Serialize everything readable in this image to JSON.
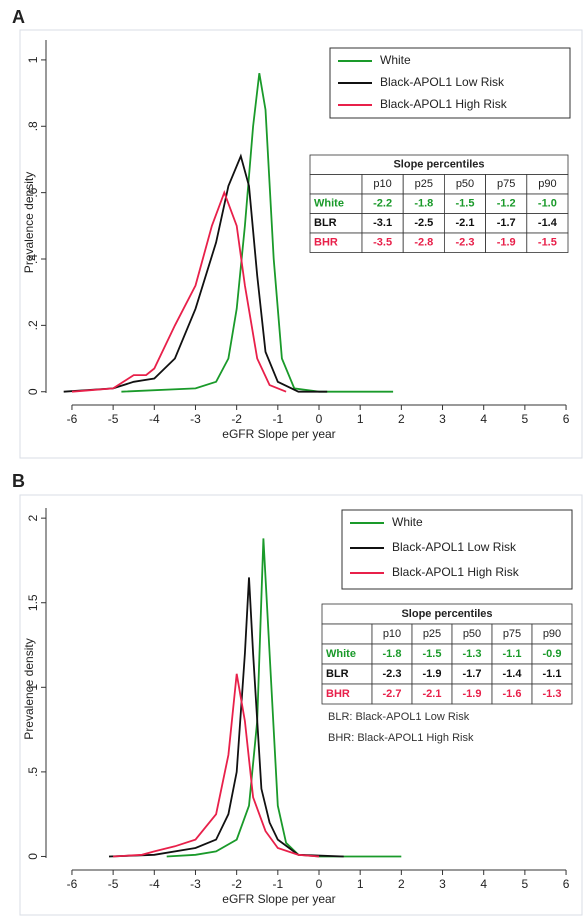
{
  "chart_data": [
    {
      "type": "line",
      "label": "A",
      "x_label": "eGFR Slope per year",
      "y_label": "Prevalence density",
      "xlim": [
        -6.3,
        6.3
      ],
      "xticks": [
        -6,
        -5,
        -4,
        -3,
        -2,
        -1,
        0,
        1,
        2,
        3,
        4,
        5,
        6
      ],
      "ylim": [
        -0.04,
        1.06
      ],
      "yticks": [
        0,
        {
          "value": 0.2,
          "label": ".2"
        },
        {
          "value": 0.4,
          "label": ".4"
        },
        {
          "value": 0.6,
          "label": ".6"
        },
        {
          "value": 0.8,
          "label": ".8"
        },
        1
      ],
      "legend": "upper right",
      "series": [
        {
          "name": "White",
          "color": "#1a9a2a",
          "x": [
            -4.8,
            -3,
            -2.5,
            -2.2,
            -2,
            -1.8,
            -1.6,
            -1.45,
            -1.3,
            -1.1,
            -0.9,
            -0.6,
            0,
            1.8
          ],
          "values": [
            0,
            0.01,
            0.03,
            0.1,
            0.25,
            0.5,
            0.8,
            0.96,
            0.85,
            0.4,
            0.1,
            0.01,
            0,
            0
          ]
        },
        {
          "name": "Black-APOL1 Low Risk",
          "color": "#111111",
          "x": [
            -6.2,
            -5,
            -4.5,
            -4,
            -3.5,
            -3,
            -2.5,
            -2.2,
            -1.9,
            -1.7,
            -1.5,
            -1.3,
            -1,
            -0.5,
            0.2
          ],
          "values": [
            0,
            0.01,
            0.03,
            0.04,
            0.1,
            0.25,
            0.45,
            0.62,
            0.71,
            0.62,
            0.35,
            0.12,
            0.03,
            0,
            0
          ]
        },
        {
          "name": "Black-APOL1 High Risk",
          "color": "#e8204a",
          "x": [
            -6,
            -5,
            -4.5,
            -4.2,
            -4,
            -3.5,
            -3,
            -2.6,
            -2.3,
            -2,
            -1.8,
            -1.5,
            -1.2,
            -0.8
          ],
          "values": [
            0,
            0.01,
            0.05,
            0.05,
            0.07,
            0.2,
            0.32,
            0.5,
            0.6,
            0.5,
            0.32,
            0.1,
            0.02,
            0
          ]
        }
      ],
      "table": {
        "title": "Slope percentiles",
        "columns": [
          "p10",
          "p25",
          "p50",
          "p75",
          "p90"
        ],
        "rows": [
          {
            "label": "White",
            "values": [
              "-2.2",
              "-1.8",
              "-1.5",
              "-1.2",
              "-1.0"
            ]
          },
          {
            "label": "BLR",
            "values": [
              "-3.1",
              "-2.5",
              "-2.1",
              "-1.7",
              "-1.4"
            ]
          },
          {
            "label": "BHR",
            "values": [
              "-3.5",
              "-2.8",
              "-2.3",
              "-1.9",
              "-1.5"
            ]
          }
        ]
      }
    },
    {
      "type": "line",
      "label": "B",
      "x_label": "eGFR Slope per year",
      "y_label": "Prevalence density",
      "xlim": [
        -6.3,
        6.3
      ],
      "xticks": [
        -6,
        -5,
        -4,
        -3,
        -2,
        -1,
        0,
        1,
        2,
        3,
        4,
        5,
        6
      ],
      "ylim": [
        -0.08,
        2.06
      ],
      "yticks": [
        0,
        {
          "value": 0.5,
          "label": ".5"
        },
        1,
        1.5,
        2
      ],
      "legend": "upper right",
      "series": [
        {
          "name": "White",
          "color": "#1a9a2a",
          "x": [
            -3.7,
            -3,
            -2.5,
            -2,
            -1.7,
            -1.5,
            -1.35,
            -1.2,
            -1,
            -0.8,
            -0.5,
            0,
            2
          ],
          "values": [
            0,
            0.01,
            0.03,
            0.1,
            0.3,
            0.8,
            1.88,
            1.2,
            0.3,
            0.08,
            0.01,
            0,
            0
          ]
        },
        {
          "name": "Black-APOL1 Low Risk",
          "color": "#111111",
          "x": [
            -5.1,
            -4,
            -3,
            -2.5,
            -2.2,
            -2,
            -1.8,
            -1.7,
            -1.6,
            -1.4,
            -1.2,
            -1,
            -0.5,
            0.6
          ],
          "values": [
            0,
            0.01,
            0.05,
            0.1,
            0.25,
            0.5,
            1.2,
            1.65,
            1.2,
            0.4,
            0.2,
            0.1,
            0.01,
            0
          ]
        },
        {
          "name": "Black-APOL1 High Risk",
          "color": "#e8204a",
          "x": [
            -5,
            -4.3,
            -4,
            -3.5,
            -3,
            -2.5,
            -2.2,
            -2,
            -1.8,
            -1.6,
            -1.3,
            -1,
            -0.5,
            0
          ],
          "values": [
            0,
            0.01,
            0.03,
            0.06,
            0.1,
            0.25,
            0.6,
            1.08,
            0.8,
            0.35,
            0.15,
            0.05,
            0.01,
            0
          ]
        }
      ],
      "table": {
        "title": "Slope percentiles",
        "columns": [
          "p10",
          "p25",
          "p50",
          "p75",
          "p90"
        ],
        "rows": [
          {
            "label": "White",
            "values": [
              "-1.8",
              "-1.5",
              "-1.3",
              "-1.1",
              "-0.9"
            ]
          },
          {
            "label": "BLR",
            "values": [
              "-2.3",
              "-1.9",
              "-1.7",
              "-1.4",
              "-1.1"
            ]
          },
          {
            "label": "BHR",
            "values": [
              "-2.7",
              "-2.1",
              "-1.9",
              "-1.6",
              "-1.3"
            ]
          }
        ]
      },
      "annotations": [
        "BLR: Black-APOL1 Low Risk",
        "BHR: Black-APOL1 High Risk"
      ]
    }
  ]
}
